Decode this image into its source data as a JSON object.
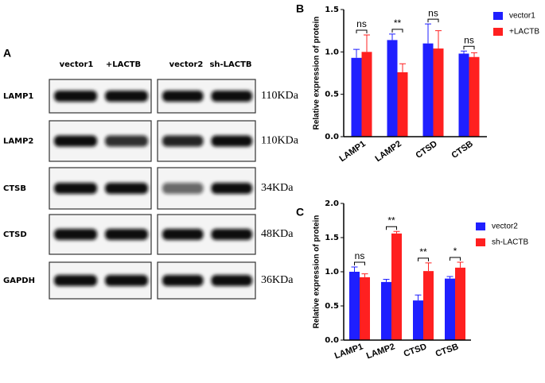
{
  "blot": {
    "panel": "A",
    "headers": [
      "vector1",
      "+LACTB",
      "vector2",
      "sh-LACTB"
    ],
    "rows": [
      {
        "protein": "LAMP1",
        "size": "110KDa"
      },
      {
        "protein": "LAMP2",
        "size": "110KDa"
      },
      {
        "protein": "CTSB",
        "size": "34KDa"
      },
      {
        "protein": "CTSD",
        "size": "48KDa"
      },
      {
        "protein": "GAPDH",
        "size": "36KDa"
      }
    ]
  },
  "chart_data": [
    {
      "type": "bar",
      "panel": "B",
      "y_label": "Relative expression of protein",
      "categories": [
        "LAMP1",
        "LAMP2",
        "CTSD",
        "CTSB"
      ],
      "series": [
        {
          "name": "vector1",
          "color": "#1f1fff",
          "values": [
            0.93,
            1.14,
            1.1,
            0.98
          ],
          "errors": [
            0.1,
            0.07,
            0.23,
            0.03
          ]
        },
        {
          "name": "+LACTB",
          "color": "#ff2020",
          "values": [
            1.0,
            0.76,
            1.04,
            0.94
          ],
          "errors": [
            0.2,
            0.1,
            0.21,
            0.05
          ]
        }
      ],
      "annotations": [
        "ns",
        "**",
        "ns",
        "ns"
      ],
      "ylim": [
        0,
        1.5
      ],
      "yticks": [
        {
          "value": 0,
          "label": "0.0"
        },
        {
          "value": 0.5,
          "label": "0.5"
        },
        {
          "value": 1,
          "label": "1.0"
        },
        {
          "value": 1.5,
          "label": "1.5"
        }
      ]
    },
    {
      "type": "bar",
      "panel": "C",
      "y_label": "Relative expression of protein",
      "categories": [
        "LAMP1",
        "LAMP2",
        "CTSD",
        "CTSB"
      ],
      "series": [
        {
          "name": "vector2",
          "color": "#1f1fff",
          "values": [
            1.0,
            0.85,
            0.58,
            0.9
          ],
          "errors": [
            0.07,
            0.04,
            0.08,
            0.03
          ]
        },
        {
          "name": "sh-LACTB",
          "color": "#ff2020",
          "values": [
            0.92,
            1.56,
            1.01,
            1.06
          ],
          "errors": [
            0.05,
            0.03,
            0.12,
            0.08
          ]
        }
      ],
      "annotations": [
        "ns",
        "**",
        "**",
        "*"
      ],
      "ylim": [
        0,
        2
      ],
      "yticks": [
        {
          "value": 0,
          "label": "0.0"
        },
        {
          "value": 0.5,
          "label": "0.5"
        },
        {
          "value": 1,
          "label": "1.0"
        },
        {
          "value": 1.5,
          "label": "1.5"
        },
        {
          "value": 2,
          "label": "2.0"
        }
      ]
    }
  ]
}
